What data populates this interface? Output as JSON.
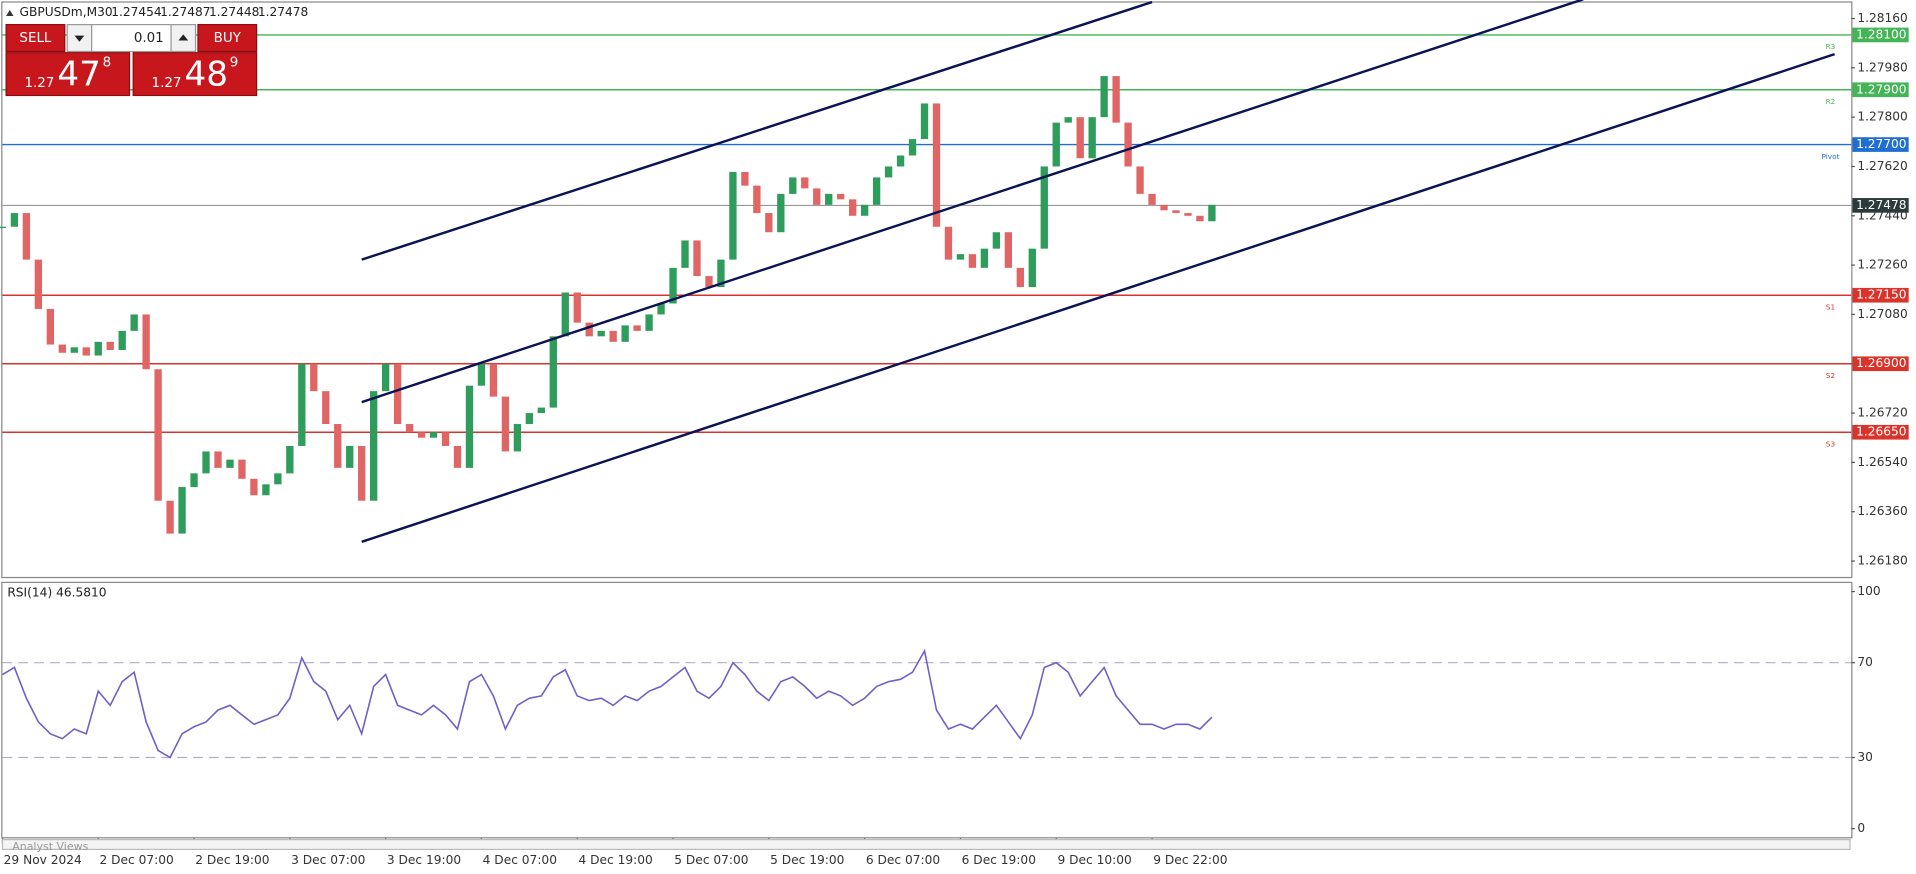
{
  "header": {
    "symbol": "GBPUSDm,M30",
    "ohlc": [
      "1.27454",
      "1.27487",
      "1.27448",
      "1.27478"
    ]
  },
  "trade_panel": {
    "sell": "SELL",
    "buy": "BUY",
    "volume": "0.01",
    "bid": {
      "prefix": "1.27",
      "big": "47",
      "small": "8"
    },
    "ask": {
      "prefix": "1.27",
      "big": "48",
      "small": "9"
    }
  },
  "footer": "Analyst Views",
  "chart_data": [
    {
      "type": "candlestick",
      "categories": [
        "29 Nov 2024",
        null,
        null,
        null,
        null,
        null,
        null,
        null,
        "2 Dec 07:00",
        null,
        null,
        null,
        null,
        null,
        null,
        null,
        "2 Dec 19:00",
        null,
        null,
        null,
        null,
        null,
        null,
        null,
        "3 Dec 07:00",
        null,
        null,
        null,
        null,
        null,
        null,
        null,
        "3 Dec 19:00",
        null,
        null,
        null,
        null,
        null,
        null,
        null,
        "4 Dec 07:00",
        null,
        null,
        null,
        null,
        null,
        null,
        null,
        "4 Dec 19:00",
        null,
        null,
        null,
        null,
        null,
        null,
        null,
        "5 Dec 07:00",
        null,
        null,
        null,
        null,
        null,
        null,
        null,
        "5 Dec 19:00",
        null,
        null,
        null,
        null,
        null,
        null,
        null,
        "6 Dec 07:00",
        null,
        null,
        null,
        null,
        null,
        null,
        null,
        "6 Dec 19:00",
        null,
        null,
        null,
        null,
        null,
        null,
        null,
        "9 Dec 10:00",
        null,
        null,
        null,
        null,
        null,
        null,
        null,
        "9 Dec 22:00",
        null,
        null,
        null,
        null,
        null
      ],
      "values": [
        1.274,
        1.2745,
        1.2728,
        1.271,
        1.2697,
        1.2694,
        1.2696,
        1.2693,
        1.2698,
        1.2695,
        1.2702,
        1.2708,
        1.2688,
        1.264,
        1.2628,
        1.2645,
        1.265,
        1.2658,
        1.2652,
        1.2655,
        1.2648,
        1.2642,
        1.2646,
        1.265,
        1.266,
        1.269,
        1.268,
        1.2668,
        1.2652,
        1.266,
        1.264,
        1.268,
        1.269,
        1.2668,
        1.2665,
        1.2663,
        1.2665,
        1.266,
        1.2652,
        1.2682,
        1.269,
        1.2678,
        1.2658,
        1.2668,
        1.2672,
        1.2674,
        1.27,
        1.2716,
        1.2705,
        1.27,
        1.2702,
        1.2698,
        1.2704,
        1.2702,
        1.2708,
        1.2712,
        1.2725,
        1.2735,
        1.2722,
        1.2718,
        1.2728,
        1.276,
        1.2755,
        1.2745,
        1.2738,
        1.2752,
        1.2758,
        1.2754,
        1.2748,
        1.2752,
        1.275,
        1.2744,
        1.2748,
        1.2758,
        1.2762,
        1.2766,
        1.2772,
        1.2785,
        1.274,
        1.2728,
        1.273,
        1.2725,
        1.2732,
        1.2738,
        1.2725,
        1.2718,
        1.2732,
        1.2762,
        1.2778,
        1.278,
        1.2765,
        1.278,
        1.2795,
        1.2778,
        1.2762,
        1.2752,
        1.2748,
        1.2746,
        1.2745,
        1.2744,
        1.2742,
        1.2748
      ],
      "up_color": "#2e9d5b",
      "down_color": "#e06666",
      "ylim": [
        1.26122,
        1.28227
      ],
      "yticks": [
        {
          "value": 1.2816,
          "label": "1.28160"
        },
        {
          "value": 1.2798,
          "label": "1.27980"
        },
        {
          "value": 1.278,
          "label": "1.27800"
        },
        {
          "value": 1.2762,
          "label": "1.27620"
        },
        {
          "value": 1.2744,
          "label": "1.27440"
        },
        {
          "value": 1.2726,
          "label": "1.27260"
        },
        {
          "value": 1.2708,
          "label": "1.27080"
        },
        {
          "value": 1.269,
          "label": "1.26900"
        },
        {
          "value": 1.2672,
          "label": "1.26720"
        },
        {
          "value": 1.2654,
          "label": "1.26540"
        },
        {
          "value": 1.2636,
          "label": "1.26360"
        },
        {
          "value": 1.2618,
          "label": "1.26180"
        }
      ],
      "levels": [
        {
          "name": "R3",
          "value": 1.281,
          "label": "1.28100",
          "color": "#44b556"
        },
        {
          "name": "R2",
          "value": 1.279,
          "label": "1.27900",
          "color": "#44b556"
        },
        {
          "name": "Pivot",
          "value": 1.277,
          "label": "1.27700",
          "color": "#1f6fd1"
        },
        {
          "name": "S1",
          "value": 1.2715,
          "label": "1.27150",
          "color": "#d9342b"
        },
        {
          "name": "S2",
          "value": 1.269,
          "label": "1.26900",
          "color": "#d9342b"
        },
        {
          "name": "S3",
          "value": 1.2665,
          "label": "1.26650",
          "color": "#d9342b"
        }
      ],
      "last_price": {
        "value": 1.27478,
        "label": "1.27478",
        "color": "#2b3a3a"
      },
      "channel_color": "#0b1354",
      "channels": [
        {
          "x": [
            30,
            96
          ],
          "y": [
            1.2728,
            1.2822
          ]
        },
        {
          "x": [
            30,
            132
          ],
          "y": [
            1.2676,
            1.2823
          ]
        },
        {
          "x": [
            30,
            153
          ],
          "y": [
            1.2625,
            1.2803
          ]
        }
      ]
    },
    {
      "type": "line",
      "title": "RSI(14) 46.5810",
      "values": [
        65,
        68,
        55,
        45,
        40,
        38,
        42,
        40,
        58,
        52,
        62,
        66,
        45,
        33,
        30,
        40,
        43,
        45,
        50,
        52,
        48,
        44,
        46,
        48,
        55,
        72,
        62,
        58,
        46,
        52,
        40,
        60,
        65,
        52,
        50,
        48,
        52,
        48,
        42,
        62,
        65,
        56,
        42,
        52,
        55,
        56,
        64,
        67,
        56,
        54,
        55,
        52,
        56,
        54,
        58,
        60,
        64,
        68,
        58,
        55,
        60,
        70,
        65,
        58,
        54,
        62,
        64,
        60,
        55,
        58,
        56,
        52,
        55,
        60,
        62,
        63,
        66,
        75,
        50,
        42,
        44,
        42,
        47,
        52,
        45,
        38,
        48,
        68,
        70,
        66,
        56,
        62,
        68,
        56,
        50,
        44,
        44,
        42,
        44,
        44,
        42,
        47
      ],
      "color": "#6f5fc7",
      "ylim": [
        0,
        100
      ],
      "yticks": [
        0,
        30,
        70,
        100
      ]
    }
  ]
}
